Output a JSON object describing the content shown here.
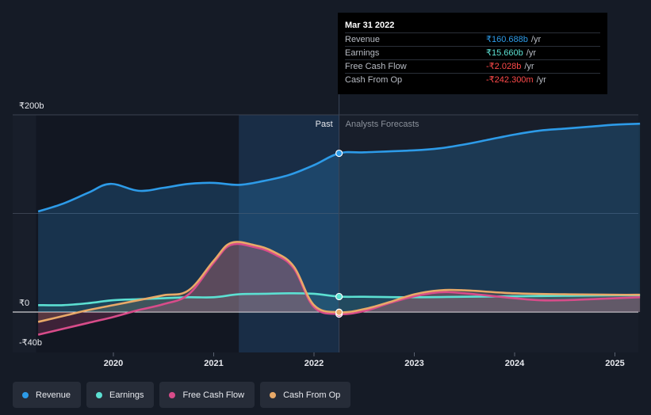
{
  "tooltip": {
    "date": "Mar 31 2022",
    "rows": [
      {
        "label": "Revenue",
        "value": "₹160.688b",
        "unit": "/yr",
        "color": "#2d9be8"
      },
      {
        "label": "Earnings",
        "value": "₹15.660b",
        "unit": "/yr",
        "color": "#5ce0d2"
      },
      {
        "label": "Free Cash Flow",
        "value": "-₹2.028b",
        "unit": "/yr",
        "color": "#ff4a4a"
      },
      {
        "label": "Cash From Op",
        "value": "-₹242.300m",
        "unit": "/yr",
        "color": "#ff4a4a"
      }
    ]
  },
  "legend": [
    {
      "label": "Revenue",
      "color": "#2d9be8"
    },
    {
      "label": "Earnings",
      "color": "#5ce0d2"
    },
    {
      "label": "Free Cash Flow",
      "color": "#d84c8a"
    },
    {
      "label": "Cash From Op",
      "color": "#e8a968"
    }
  ],
  "chart_data": {
    "type": "line",
    "title": "",
    "xlabel": "",
    "ylabel": "",
    "currency": "₹",
    "y_tick_labels": [
      "₹200b",
      "₹0",
      "-₹40b"
    ],
    "x_tick_labels": [
      "2020",
      "2021",
      "2022",
      "2023",
      "2024",
      "2025"
    ],
    "x_ticks": [
      2020,
      2021,
      2022,
      2023,
      2024,
      2025
    ],
    "xlim": [
      2019.23,
      2025.25
    ],
    "ylim": [
      -40,
      200
    ],
    "past_label": "Past",
    "forecast_label": "Analysts Forecasts",
    "divider_x": 2022.25,
    "shaded_band_start": 2021.25,
    "series": [
      {
        "name": "Revenue",
        "color": "#2d9be8",
        "x": [
          2019.25,
          2019.5,
          2019.75,
          2019.97,
          2020.25,
          2020.5,
          2020.75,
          2021.0,
          2021.25,
          2021.5,
          2021.75,
          2022.0,
          2022.25,
          2022.5,
          2023.0,
          2023.25,
          2023.5,
          2023.75,
          2024.0,
          2024.25,
          2024.5,
          2024.75,
          2025.0,
          2025.25
        ],
        "y": [
          102,
          110,
          121,
          130,
          123,
          126,
          130,
          131,
          129,
          133,
          139,
          149,
          161,
          162,
          164,
          166,
          170,
          175,
          180,
          184,
          186,
          188,
          190,
          191
        ]
      },
      {
        "name": "Earnings",
        "color": "#5ce0d2",
        "x": [
          2019.25,
          2019.5,
          2019.75,
          2020.0,
          2020.25,
          2020.5,
          2020.75,
          2021.0,
          2021.25,
          2021.5,
          2021.75,
          2022.0,
          2022.25,
          2022.5,
          2023.0,
          2023.5,
          2024.0,
          2024.5,
          2025.0,
          2025.25
        ],
        "y": [
          7,
          7,
          9,
          12,
          13,
          14,
          15,
          15,
          18,
          18.5,
          19,
          18.5,
          15.7,
          15.5,
          15,
          15.5,
          16,
          16.5,
          17,
          17
        ]
      },
      {
        "name": "Free Cash Flow",
        "color": "#d84c8a",
        "x": [
          2019.25,
          2019.5,
          2019.75,
          2020.0,
          2020.25,
          2020.5,
          2020.75,
          2021.0,
          2021.17,
          2021.4,
          2021.6,
          2021.8,
          2022.0,
          2022.25,
          2022.5,
          2022.75,
          2023.0,
          2023.25,
          2023.5,
          2024.0,
          2024.25,
          2024.5,
          2025.0,
          2025.25
        ],
        "y": [
          -23,
          -17,
          -11,
          -5,
          2,
          8,
          18,
          50,
          68,
          66,
          59,
          44,
          5,
          -2,
          1,
          9,
          16,
          20,
          19,
          14,
          12,
          12,
          14,
          15
        ]
      },
      {
        "name": "Cash From Op",
        "color": "#e8a968",
        "x": [
          2019.25,
          2019.5,
          2019.75,
          2020.0,
          2020.25,
          2020.5,
          2020.75,
          2021.0,
          2021.17,
          2021.4,
          2021.6,
          2021.8,
          2022.0,
          2022.25,
          2022.5,
          2022.75,
          2023.0,
          2023.25,
          2023.5,
          2024.0,
          2024.5,
          2025.0,
          2025.25
        ],
        "y": [
          -10,
          -4,
          2,
          7,
          12,
          17,
          22,
          52,
          70,
          68,
          61,
          46,
          7,
          -0.2,
          3,
          10,
          18,
          22,
          22,
          19,
          18,
          17.5,
          17.5
        ]
      }
    ]
  }
}
